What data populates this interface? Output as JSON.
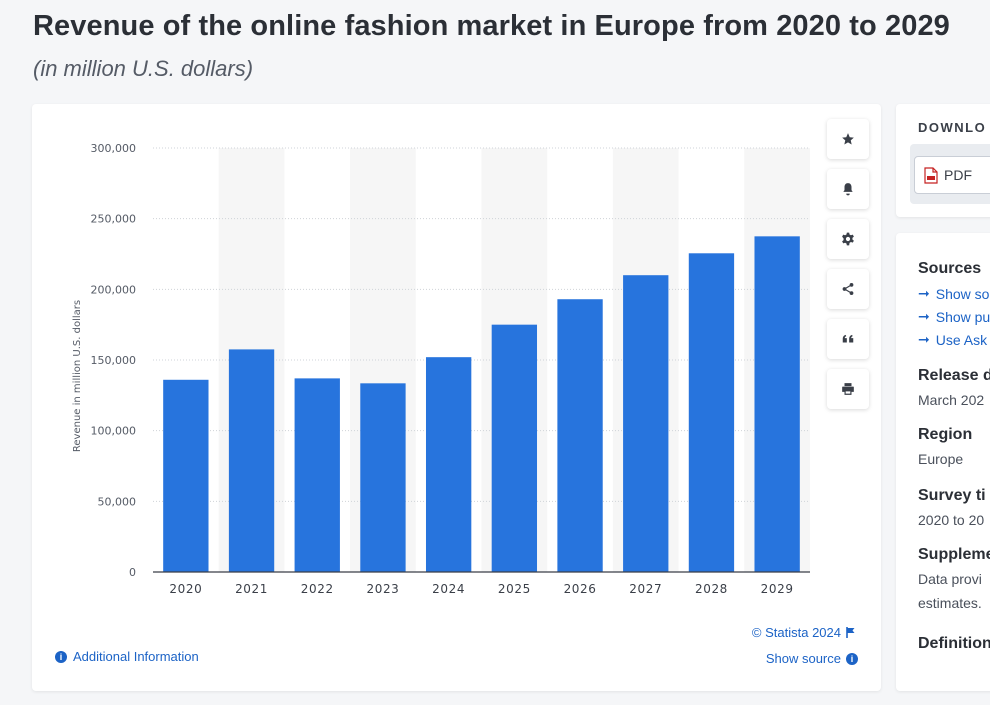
{
  "header": {
    "title": "Revenue of the online fashion market in Europe from 2020 to 2029",
    "subtitle": "(in million U.S. dollars)"
  },
  "chart_data": {
    "type": "bar",
    "title": "",
    "xlabel": "",
    "ylabel": "Revenue in million U.S. dollars",
    "categories": [
      "2020",
      "2021",
      "2022",
      "2023",
      "2024",
      "2025",
      "2026",
      "2027",
      "2028",
      "2029"
    ],
    "values": [
      136000,
      157500,
      137000,
      133500,
      152000,
      175000,
      193000,
      210000,
      225500,
      237500
    ],
    "ylim": [
      0,
      300000
    ],
    "yticks": [
      0,
      50000,
      100000,
      150000,
      200000,
      250000,
      300000
    ],
    "ytick_labels": [
      "0",
      "50,000",
      "100,000",
      "150,000",
      "200,000",
      "250,000",
      "300,000"
    ],
    "bar_color": "#2774dd",
    "grid": "horizontal dotted",
    "legend": "none"
  },
  "footer": {
    "copyright": "© Statista 2024",
    "show_source": "Show source",
    "additional_info": "Additional Information"
  },
  "toolbar": {
    "buttons": [
      "star-icon",
      "bell-icon",
      "gear-icon",
      "share-icon",
      "quote-icon",
      "print-icon"
    ]
  },
  "sidebar": {
    "download_label": "DOWNLO",
    "pdf_label": "PDF",
    "sources_heading": "Sources",
    "source_links": [
      "Show so",
      "Show pu",
      "Use Ask"
    ],
    "release_heading": "Release d",
    "release_value": "March 202",
    "region_heading": "Region",
    "region_value": "Europe",
    "survey_heading": "Survey ti",
    "survey_value": "2020 to 20",
    "supplementary_heading": "Suppleme",
    "supplementary_value_1": "Data provi",
    "supplementary_value_2": "estimates.",
    "definition_heading": "Definition"
  }
}
